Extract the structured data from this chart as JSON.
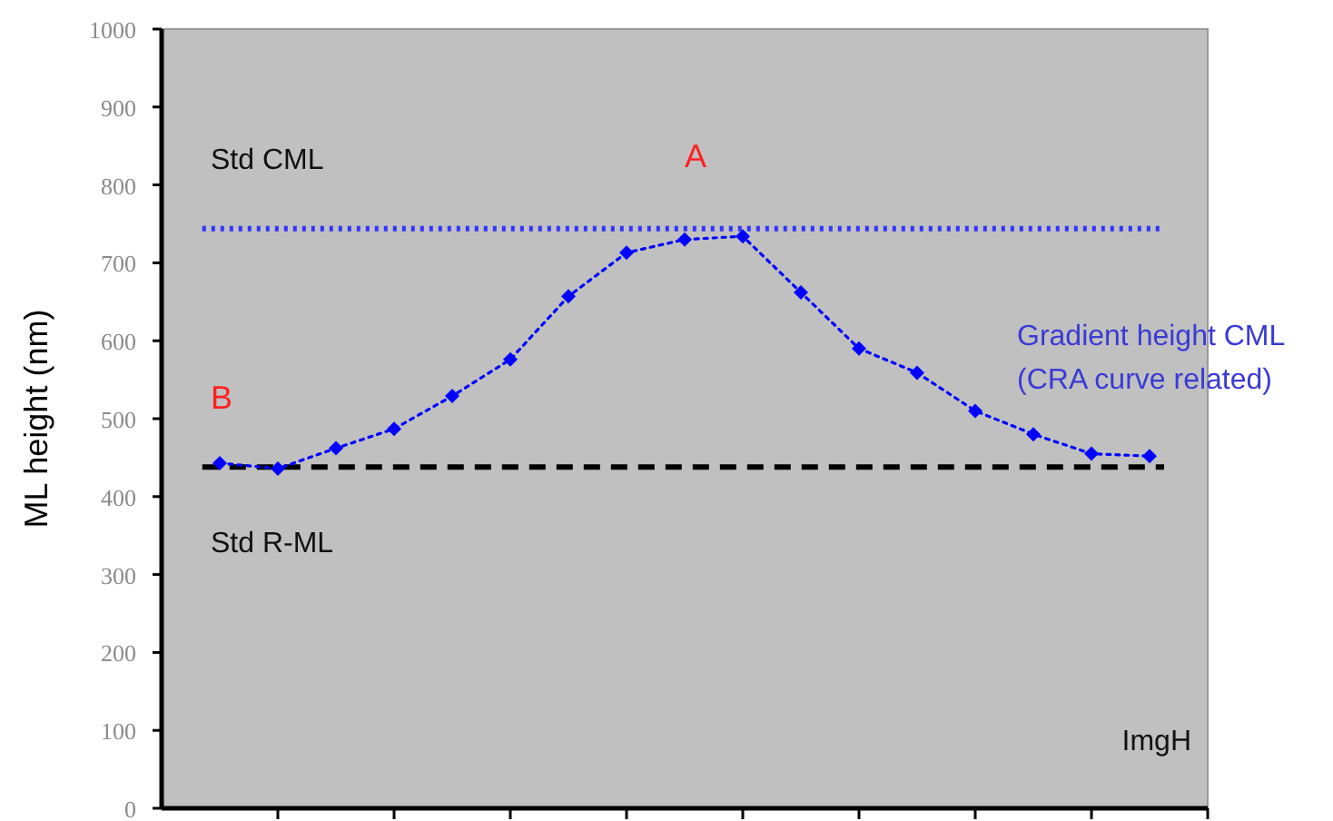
{
  "chart_data": {
    "type": "line",
    "ylabel": "ML height (nm)",
    "xlabel": "ImgH",
    "categories": [
      null,
      null,
      null,
      null,
      null,
      null,
      null,
      null,
      null,
      null,
      null,
      null,
      null,
      null,
      null,
      null,
      null
    ],
    "series": [
      {
        "name": "Gradient height CML (CRA curve related)",
        "color": "#0000ff",
        "values": [
          443,
          436,
          462,
          487,
          529,
          576,
          657,
          713,
          730,
          734,
          662,
          590,
          559,
          510,
          480,
          455,
          452
        ]
      }
    ],
    "ylim": [
      0,
      1000
    ],
    "yticks": [
      0,
      100,
      200,
      300,
      400,
      500,
      600,
      700,
      800,
      900,
      1000
    ],
    "ref_lines": [
      {
        "axis": "y",
        "value": 744,
        "label": "Std CML",
        "color": "#3333ff",
        "line_style": "dotted"
      },
      {
        "axis": "y",
        "value": 438,
        "label": "Std R-ML",
        "color": "#000000",
        "line_style": "dashed"
      }
    ],
    "annotations": [
      "A",
      "B"
    ],
    "grid": false,
    "marker": "diamond",
    "line_style": "dotted"
  }
}
